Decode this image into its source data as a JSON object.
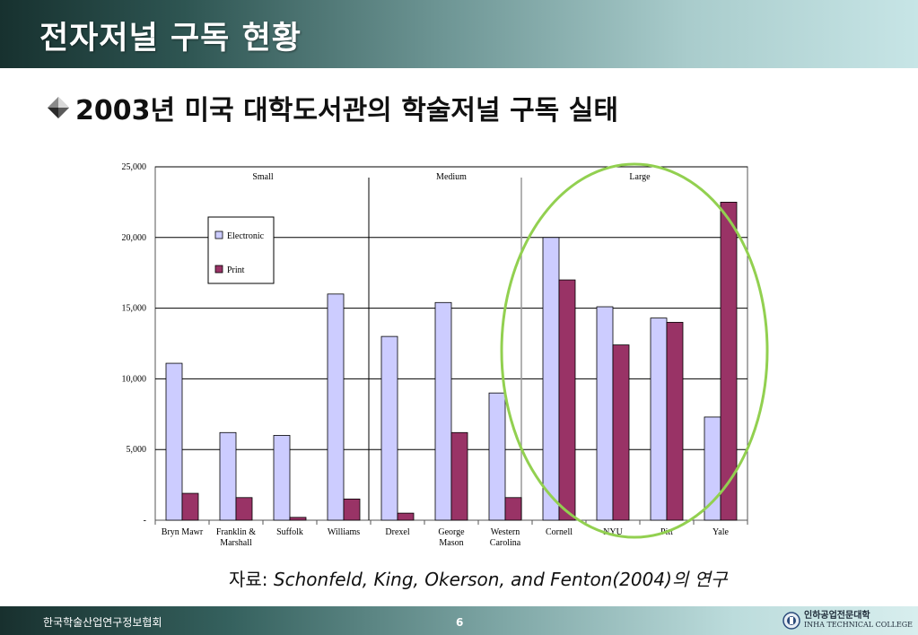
{
  "slide": {
    "title": "전자저널 구독 현황",
    "subtitle": "2003년 미국 대학도서관의 학술저널 구독 실태",
    "source_prefix": "자료: ",
    "source_text": "Schonfeld, King, Okerson, and Fenton(2004)의 연구",
    "footer_org": "한국학술산업연구정보협회",
    "page_number": "6",
    "logo_ko": "인하공업전문대학",
    "logo_en": "INHA TECHNICAL COLLEGE"
  },
  "colors": {
    "electronic": "#ccccff",
    "print": "#993366",
    "highlight": "#92d050"
  },
  "chart_data": {
    "type": "bar",
    "categories": [
      "Bryn Mawr",
      "Franklin & Marshall",
      "Suffolk",
      "Williams",
      "Drexel",
      "George Mason",
      "Western Carolina",
      "Cornell",
      "NYU",
      "Pitt",
      "Yale"
    ],
    "category_lines": [
      [
        "Bryn Mawr"
      ],
      [
        "Franklin &",
        "Marshall"
      ],
      [
        "Suffolk"
      ],
      [
        "Williams"
      ],
      [
        "Drexel"
      ],
      [
        "George",
        "Mason"
      ],
      [
        "Western",
        "Carolina"
      ],
      [
        "Cornell"
      ],
      [
        "NYU"
      ],
      [
        "Pitt"
      ],
      [
        "Yale"
      ]
    ],
    "series": [
      {
        "name": "Electronic",
        "values": [
          11100,
          6200,
          6000,
          16000,
          13000,
          15400,
          9000,
          20000,
          15100,
          14300,
          7300
        ]
      },
      {
        "name": "Print",
        "values": [
          1900,
          1600,
          200,
          1500,
          500,
          6200,
          1600,
          17000,
          12400,
          14000,
          22500
        ]
      }
    ],
    "groups": [
      {
        "label": "Small",
        "categories": [
          "Bryn Mawr",
          "Franklin & Marshall",
          "Suffolk",
          "Williams"
        ]
      },
      {
        "label": "Medium",
        "categories": [
          "Drexel",
          "George Mason",
          "Western Carolina"
        ]
      },
      {
        "label": "Large",
        "categories": [
          "Cornell",
          "NYU",
          "Pitt",
          "Yale"
        ]
      }
    ],
    "yticks": [
      "-",
      "5,000",
      "10,000",
      "15,000",
      "20,000",
      "25,000"
    ],
    "ylim": [
      0,
      25000
    ],
    "grid": true,
    "legend_position": "top-left",
    "highlight_group": "Large"
  }
}
